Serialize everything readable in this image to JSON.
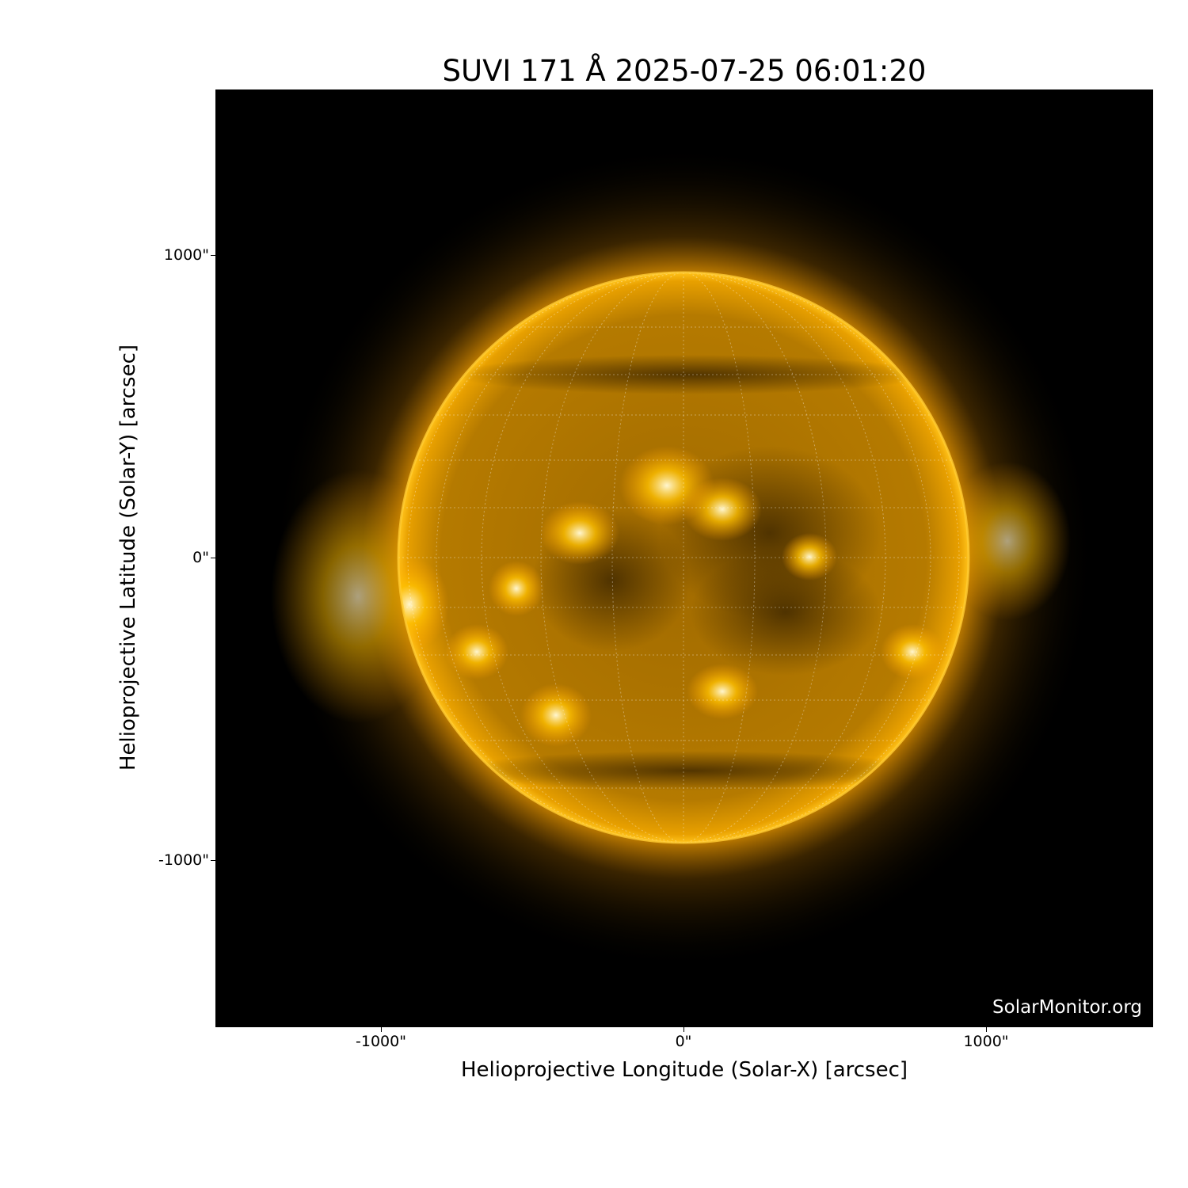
{
  "title": "SUVI 171 Å 2025-07-25 06:01:20",
  "xlabel": "Helioprojective Longitude (Solar-X) [arcsec]",
  "ylabel": "Helioprojective Latitude (Solar-Y) [arcsec]",
  "xticks": [
    "-1000\"",
    "0\"",
    "1000\""
  ],
  "yticks": [
    "1000\"",
    "0\"",
    "-1000\""
  ],
  "watermark": "SolarMonitor.org",
  "colors": {
    "disk": "#e8a400",
    "corona": "#ffb000",
    "background": "#000000"
  }
}
